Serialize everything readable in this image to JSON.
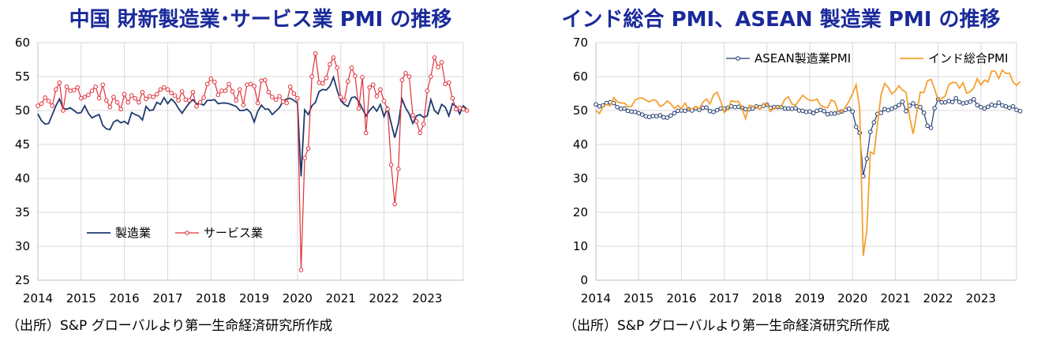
{
  "chart_data": [
    {
      "type": "line",
      "title": "中国 財新製造業･サービス業 PMI の推移",
      "source": "（出所）S&P グローバルより第一生命経済研究所作成",
      "x_tick_labels": [
        "2014",
        "2015",
        "2016",
        "2017",
        "2018",
        "2019",
        "2020",
        "2021",
        "2022",
        "2023"
      ],
      "y_tick_labels": [
        "25",
        "30",
        "35",
        "40",
        "45",
        "50",
        "55",
        "60"
      ],
      "ylim": [
        25,
        60
      ],
      "xlim": [
        2014.0,
        2023.833
      ],
      "legend_position": "lower-left",
      "grid": true,
      "series": [
        {
          "name": "製造業",
          "color": "#1f3a6e",
          "marker": "none",
          "values": [
            49.5,
            48.5,
            48.0,
            48.1,
            49.4,
            50.7,
            51.7,
            50.3,
            50.2,
            50.4,
            50.0,
            49.6,
            49.7,
            50.7,
            49.6,
            48.9,
            49.2,
            49.4,
            47.8,
            47.3,
            47.2,
            48.3,
            48.6,
            48.2,
            48.4,
            48.0,
            49.7,
            49.4,
            49.2,
            48.6,
            50.6,
            50.0,
            50.1,
            51.2,
            50.9,
            51.9,
            51.0,
            51.7,
            51.2,
            50.3,
            49.6,
            50.4,
            51.1,
            51.6,
            51.0,
            51.0,
            50.8,
            51.5,
            51.5,
            51.6,
            51.0,
            51.1,
            51.1,
            51.0,
            50.8,
            50.6,
            50.0,
            50.0,
            50.2,
            49.7,
            48.3,
            49.9,
            50.8,
            50.2,
            50.2,
            49.4,
            49.9,
            50.4,
            51.4,
            51.7,
            51.8,
            51.5,
            51.1,
            40.3,
            50.1,
            49.4,
            50.7,
            51.2,
            52.8,
            53.1,
            53.0,
            53.6,
            54.9,
            53.0,
            51.5,
            50.9,
            50.6,
            51.9,
            52.0,
            51.3,
            50.3,
            49.2,
            50.0,
            50.6,
            49.9,
            50.9,
            49.1,
            50.4,
            48.1,
            46.0,
            48.1,
            51.7,
            50.4,
            49.5,
            48.1,
            49.2,
            49.4,
            49.0,
            49.2,
            51.6,
            50.0,
            49.5,
            50.9,
            50.5,
            49.2,
            51.0,
            50.6,
            49.5,
            50.7,
            50.2
          ],
          "start": "2014-01"
        },
        {
          "name": "サービス業",
          "color": "#e0303a",
          "marker": "circle",
          "values": [
            50.7,
            51.0,
            51.9,
            51.4,
            50.7,
            53.1,
            54.1,
            50.0,
            53.5,
            52.9,
            53.0,
            53.4,
            51.8,
            52.0,
            52.3,
            52.9,
            53.5,
            51.8,
            53.8,
            51.5,
            50.5,
            52.0,
            51.2,
            50.2,
            52.4,
            51.2,
            52.2,
            51.8,
            51.2,
            52.7,
            51.7,
            52.1,
            52.0,
            52.4,
            53.1,
            53.4,
            53.1,
            52.6,
            52.2,
            51.5,
            52.8,
            51.6,
            51.5,
            52.7,
            50.6,
            51.2,
            51.9,
            53.9,
            54.7,
            54.2,
            52.3,
            52.9,
            52.9,
            53.9,
            52.8,
            51.5,
            53.1,
            50.8,
            53.8,
            53.9,
            53.6,
            51.1,
            54.4,
            54.5,
            52.7,
            52.0,
            51.6,
            52.1,
            51.3,
            51.1,
            53.5,
            52.5,
            51.8,
            26.5,
            43.0,
            44.4,
            55.0,
            58.4,
            54.1,
            54.0,
            54.8,
            56.8,
            57.8,
            56.3,
            52.0,
            51.5,
            54.3,
            56.3,
            55.1,
            50.3,
            54.9,
            46.7,
            53.4,
            53.8,
            52.1,
            53.1,
            51.4,
            50.2,
            42.0,
            36.2,
            41.4,
            54.5,
            55.5,
            55.0,
            49.3,
            48.4,
            46.7,
            48.0,
            52.9,
            55.0,
            57.8,
            56.4,
            57.1,
            53.9,
            54.1,
            51.8,
            50.2,
            50.4,
            50.2,
            50.0
          ],
          "start": "2014-01"
        }
      ]
    },
    {
      "type": "line",
      "title": "インド総合 PMI、ASEAN 製造業 PMI の推移",
      "source": "（出所）S&P グローバルより第一生命経済研究所作成",
      "x_tick_labels": [
        "2014",
        "2015",
        "2016",
        "2017",
        "2018",
        "2019",
        "2020",
        "2021",
        "2022",
        "2023"
      ],
      "y_tick_labels": [
        "0",
        "10",
        "20",
        "30",
        "40",
        "50",
        "60",
        "70"
      ],
      "ylim": [
        0,
        70
      ],
      "xlim": [
        2014.0,
        2023.833
      ],
      "legend_position": "top",
      "grid": true,
      "series": [
        {
          "name": "ASEAN製造業PMI",
          "color": "#1f3a6e",
          "marker": "circle",
          "values": [
            51.8,
            51.2,
            51.5,
            52.2,
            52.4,
            52.2,
            51.0,
            50.5,
            50.6,
            49.9,
            49.7,
            49.6,
            49.2,
            48.8,
            48.3,
            48.1,
            48.4,
            48.3,
            48.6,
            48.0,
            47.9,
            48.5,
            49.2,
            49.9,
            50.0,
            49.9,
            50.4,
            50.0,
            50.7,
            50.2,
            50.8,
            50.9,
            49.8,
            49.6,
            50.1,
            50.6,
            50.5,
            50.8,
            51.2,
            51.0,
            51.1,
            50.8,
            50.4,
            50.4,
            50.6,
            51.2,
            51.0,
            51.4,
            51.7,
            50.8,
            51.0,
            51.0,
            51.0,
            50.6,
            50.6,
            50.5,
            50.7,
            50.0,
            49.9,
            49.6,
            49.7,
            49.2,
            49.9,
            50.2,
            49.8,
            48.9,
            49.1,
            49.1,
            49.4,
            49.7,
            50.2,
            50.5,
            49.7,
            45.2,
            43.4,
            30.7,
            35.8,
            43.7,
            46.5,
            49.0,
            49.3,
            50.4,
            50.1,
            50.5,
            51.0,
            51.6,
            52.6,
            49.8,
            51.4,
            52.1,
            51.2,
            51.0,
            49.3,
            45.5,
            44.9,
            50.7,
            53.3,
            52.4,
            52.4,
            52.8,
            52.5,
            53.6,
            52.5,
            52.1,
            52.3,
            52.6,
            53.3,
            51.6,
            51.0,
            50.6,
            51.1,
            51.7,
            51.4,
            52.3,
            51.5,
            51.2,
            50.8,
            51.2,
            50.2,
            49.8
          ],
          "start": "2014-01"
        },
        {
          "name": "インド総合PMI",
          "color": "#f5a030",
          "marker": "none",
          "values": [
            50.0,
            49.1,
            51.1,
            51.8,
            51.4,
            53.8,
            52.6,
            52.2,
            52.2,
            51.1,
            51.2,
            53.1,
            53.6,
            53.7,
            53.1,
            52.5,
            53.2,
            52.8,
            51.2,
            51.7,
            52.8,
            52.0,
            50.6,
            51.5,
            50.5,
            52.2,
            50.3,
            50.5,
            51.1,
            50.5,
            52.4,
            53.4,
            51.9,
            54.6,
            55.4,
            52.8,
            49.4,
            50.4,
            52.9,
            52.6,
            52.7,
            50.6,
            47.6,
            51.5,
            51.3,
            51.0,
            50.3,
            52.1,
            51.8,
            49.7,
            50.8,
            50.9,
            51.2,
            53.3,
            54.1,
            51.9,
            51.6,
            53.0,
            54.5,
            53.6,
            53.0,
            52.9,
            53.4,
            51.6,
            51.0,
            50.8,
            53.1,
            52.6,
            49.6,
            49.6,
            51.0,
            52.7,
            55.0,
            57.6,
            50.6,
            7.2,
            14.8,
            37.8,
            37.2,
            46.0,
            54.6,
            58.0,
            56.8,
            54.9,
            55.8,
            57.3,
            56.0,
            55.4,
            48.1,
            43.1,
            49.2,
            55.4,
            55.3,
            58.7,
            59.2,
            56.4,
            53.0,
            53.5,
            54.3,
            57.6,
            58.3,
            58.2,
            56.6,
            58.2,
            55.1,
            55.5,
            56.7,
            59.4,
            57.5,
            59.0,
            58.4,
            61.6,
            61.6,
            59.4,
            61.9,
            60.9,
            61.0,
            58.4,
            57.4,
            58.5
          ],
          "start": "2014-01"
        }
      ]
    }
  ]
}
